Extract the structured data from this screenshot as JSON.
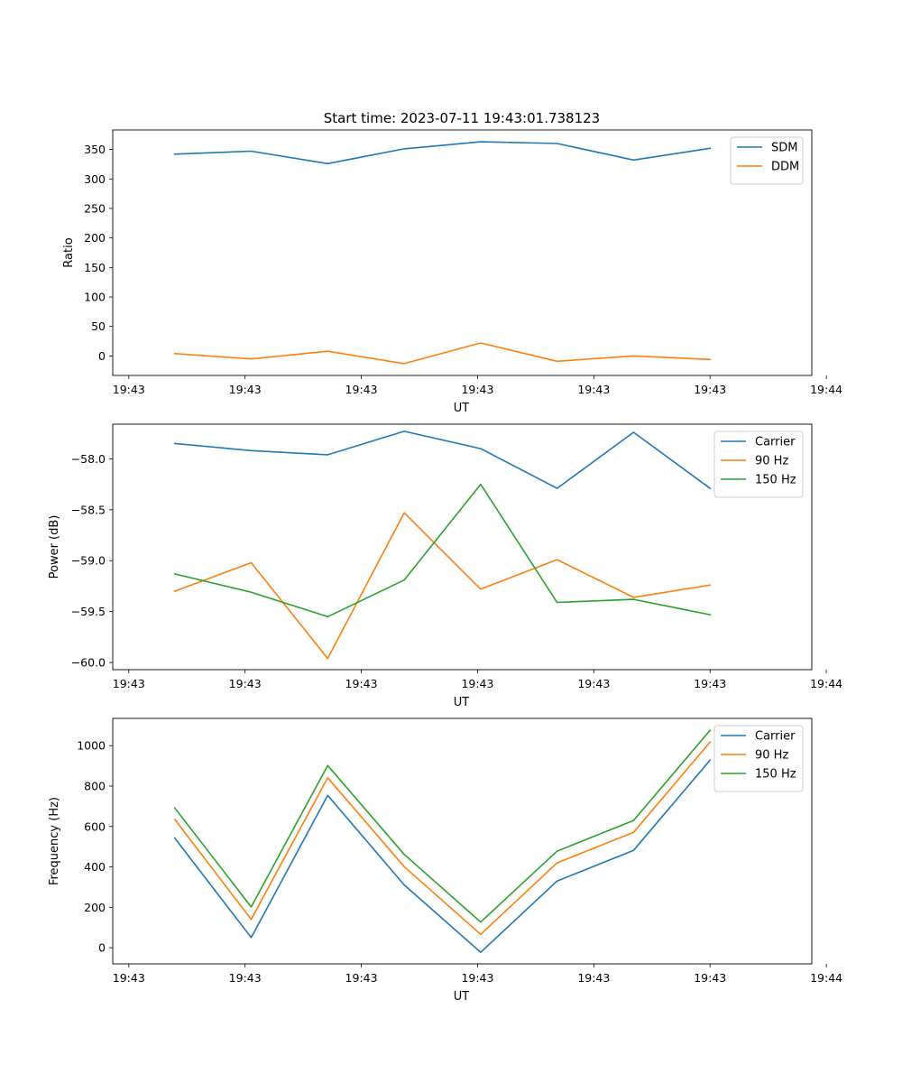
{
  "figure_title": "Start time: 2023-07-11 19:43:01.738123",
  "chart_data": [
    {
      "type": "line",
      "title": "Start time: 2023-07-11 19:43:01.738123",
      "xlabel": "UT",
      "ylabel": "Ratio",
      "x": [
        1,
        2,
        3,
        4,
        5,
        6,
        7,
        8
      ],
      "xlim": [
        0.19,
        9.33
      ],
      "x_ticks": [
        0.4,
        1.92,
        3.44,
        4.96,
        6.48,
        8.0,
        9.52
      ],
      "x_tick_labels": [
        "19:43",
        "19:43",
        "19:43",
        "19:43",
        "19:43",
        "19:43",
        "19:44"
      ],
      "ylim": [
        -33,
        383
      ],
      "y_ticks": [
        0,
        50,
        100,
        150,
        200,
        250,
        300,
        350
      ],
      "y_tick_labels": [
        "0",
        "50",
        "100",
        "150",
        "200",
        "250",
        "300",
        "350"
      ],
      "legend_position": "upper right",
      "series": [
        {
          "name": "SDM",
          "color": "#1f77b4",
          "values": [
            342,
            347,
            326,
            351,
            363,
            360,
            332,
            352
          ]
        },
        {
          "name": "DDM",
          "color": "#ff7f0e",
          "values": [
            4,
            -5,
            8,
            -13,
            22,
            -9,
            0,
            -6
          ]
        }
      ]
    },
    {
      "type": "line",
      "title": "",
      "xlabel": "UT",
      "ylabel": "Power (dB)",
      "x": [
        1,
        2,
        3,
        4,
        5,
        6,
        7,
        8
      ],
      "xlim": [
        0.19,
        9.33
      ],
      "x_ticks": [
        0.4,
        1.92,
        3.44,
        4.96,
        6.48,
        8.0,
        9.52
      ],
      "x_tick_labels": [
        "19:43",
        "19:43",
        "19:43",
        "19:43",
        "19:43",
        "19:43",
        "19:44"
      ],
      "ylim": [
        -60.07,
        -57.66
      ],
      "y_ticks": [
        -60.0,
        -59.5,
        -59.0,
        -58.5,
        -58.0
      ],
      "y_tick_labels": [
        "−60.0",
        "−59.5",
        "−59.0",
        "−58.5",
        "−58.0"
      ],
      "legend_position": "upper right",
      "series": [
        {
          "name": "Carrier",
          "color": "#1f77b4",
          "values": [
            -57.85,
            -57.92,
            -57.96,
            -57.73,
            -57.9,
            -58.29,
            -57.74,
            -58.29
          ]
        },
        {
          "name": "90 Hz",
          "color": "#ff7f0e",
          "values": [
            -59.3,
            -59.02,
            -59.96,
            -58.53,
            -59.28,
            -58.99,
            -59.36,
            -59.24
          ]
        },
        {
          "name": "150 Hz",
          "color": "#2ca02c",
          "values": [
            -59.13,
            -59.31,
            -59.55,
            -59.19,
            -58.25,
            -59.41,
            -59.38,
            -59.53
          ]
        }
      ]
    },
    {
      "type": "line",
      "title": "",
      "xlabel": "UT",
      "ylabel": "Frequency (Hz)",
      "x": [
        1,
        2,
        3,
        4,
        5,
        6,
        7,
        8
      ],
      "xlim": [
        0.19,
        9.33
      ],
      "x_ticks": [
        0.4,
        1.92,
        3.44,
        4.96,
        6.48,
        8.0,
        9.52
      ],
      "x_tick_labels": [
        "19:43",
        "19:43",
        "19:43",
        "19:43",
        "19:43",
        "19:43",
        "19:44"
      ],
      "ylim": [
        -80,
        1135
      ],
      "y_ticks": [
        0,
        200,
        400,
        600,
        800,
        1000
      ],
      "y_tick_labels": [
        "0",
        "200",
        "400",
        "600",
        "800",
        "1000"
      ],
      "legend_position": "upper right",
      "series": [
        {
          "name": "Carrier",
          "color": "#1f77b4",
          "values": [
            543,
            50,
            754,
            311,
            -23,
            330,
            482,
            928
          ]
        },
        {
          "name": "90 Hz",
          "color": "#ff7f0e",
          "values": [
            635,
            140,
            841,
            401,
            66,
            420,
            571,
            1018
          ]
        },
        {
          "name": "150 Hz",
          "color": "#2ca02c",
          "values": [
            692,
            202,
            902,
            462,
            127,
            478,
            630,
            1076
          ]
        }
      ]
    }
  ]
}
